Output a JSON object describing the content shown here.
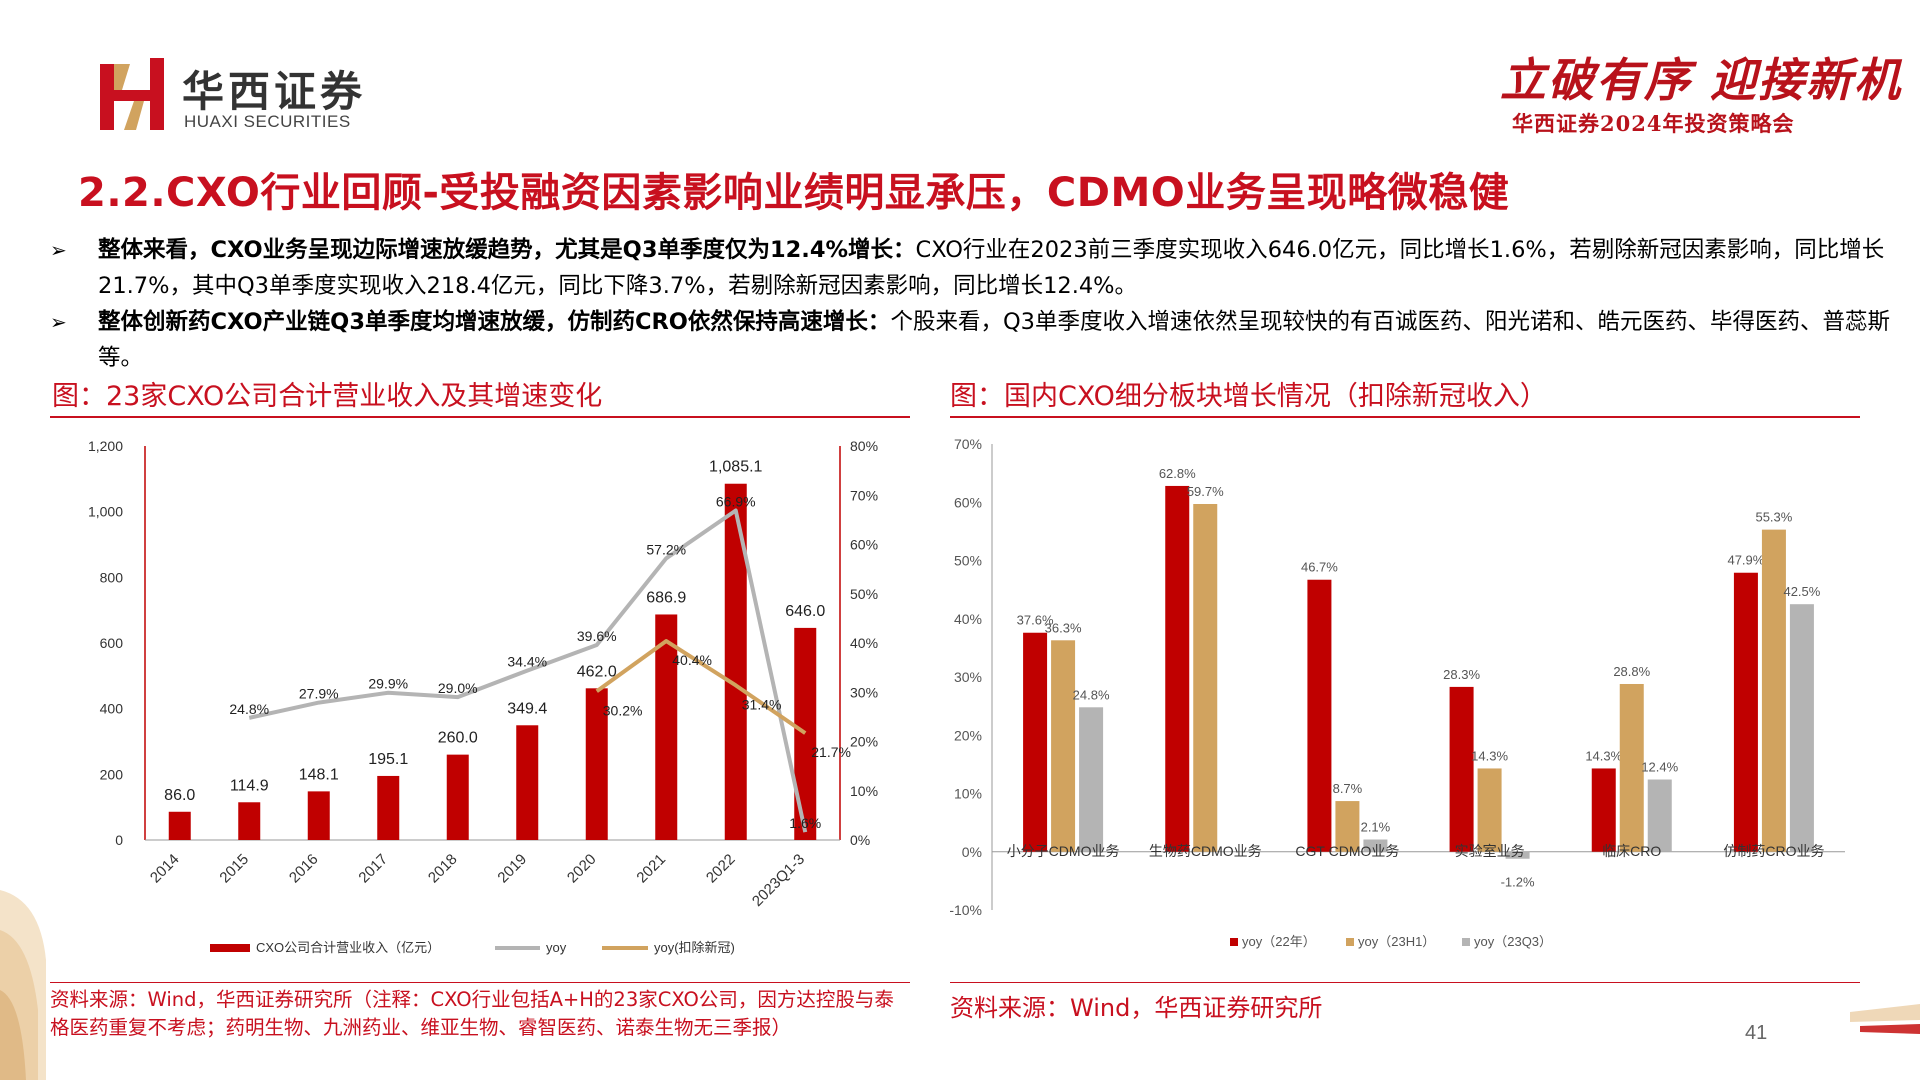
{
  "header": {
    "brand_cn": "华西证券",
    "brand_en": "HUAXI SECURITIES",
    "slogan": "立破有序 迎接新机",
    "conference": "华西证券2024年投资策略会"
  },
  "page_title": "2.2.CXO行业回顾-受投融资因素影响业绩明显承压，CDMO业务呈现略微稳健",
  "bullets": [
    {
      "marker": "➢",
      "bold": "整体来看，CXO业务呈现边际增速放缓趋势，尤其是Q3单季度仅为12.4%增长：",
      "text": "CXO行业在2023前三季度实现收入646.0亿元，同比增长1.6%，若剔除新冠因素影响，同比增长21.7%，其中Q3单季度实现收入218.4亿元，同比下降3.7%，若剔除新冠因素影响，同比增长12.4%。"
    },
    {
      "marker": "➢",
      "bold": "整体创新药CXO产业链Q3单季度均增速放缓，仿制药CRO依然保持高速增长：",
      "text": "个股来看，Q3单季度收入增速依然呈现较快的有百诚医药、阳光诺和、皓元医药、毕得医药、普蕊斯等。"
    }
  ],
  "figure_left": {
    "title": "图：23家CXO公司合计营业收入及其增速变化",
    "source": "资料来源：Wind，华西证券研究所（注释：CXO行业包括A+H的23家CXO公司，因方达控股与泰格医药重复不考虑；药明生物、九洲药业、维亚生物、睿智医药、诺泰生物无三季报）"
  },
  "figure_right": {
    "title": "图：国内CXO细分板块增长情况（扣除新冠收入）",
    "source": "资料来源：Wind，华西证券研究所"
  },
  "page_number": "41",
  "colors": {
    "red": "#c00000",
    "gold": "#d1a35f",
    "gray": "#b4b4b4",
    "title_red": "#c8101f"
  },
  "chart_data": [
    {
      "type": "bar",
      "categories": [
        "2014",
        "2015",
        "2016",
        "2017",
        "2018",
        "2019",
        "2020",
        "2021",
        "2022",
        "2023Q1-3"
      ],
      "series": [
        {
          "name": "CXO公司合计营业收入（亿元）",
          "type": "bar",
          "axis": "left",
          "color": "#c00000",
          "values": [
            86.0,
            114.9,
            148.1,
            195.1,
            260.0,
            349.4,
            462.0,
            686.9,
            1085.1,
            646.0
          ],
          "labels": [
            "86.0",
            "114.9",
            "148.1",
            "195.1",
            "260.0",
            "349.4",
            "462.0",
            "686.9",
            "1,085.1",
            "646.0"
          ]
        },
        {
          "name": "yoy",
          "type": "line",
          "axis": "right",
          "color": "#b4b4b4",
          "values": [
            null,
            24.8,
            27.9,
            29.9,
            29.0,
            34.4,
            39.6,
            57.2,
            66.9,
            1.6
          ],
          "labels": [
            "",
            "24.8%",
            "27.9%",
            "29.9%",
            "29.0%",
            "34.4%",
            "39.6%",
            "57.2%",
            "66.9%",
            "1.6%"
          ]
        },
        {
          "name": "yoy(扣除新冠)",
          "type": "line",
          "axis": "right",
          "color": "#d1a35f",
          "values": [
            null,
            null,
            null,
            null,
            null,
            null,
            30.2,
            40.4,
            31.4,
            21.7
          ],
          "labels": [
            "",
            "",
            "",
            "",
            "",
            "",
            "30.2%",
            "40.4%",
            "31.4%",
            "21.7%"
          ]
        }
      ],
      "y_left": {
        "range": [
          0,
          1200
        ],
        "ticks": [
          "0",
          "200",
          "400",
          "600",
          "800",
          "1,000",
          "1,200"
        ]
      },
      "y_right": {
        "range": [
          0,
          80
        ],
        "ticks": [
          "0%",
          "10%",
          "20%",
          "30%",
          "40%",
          "50%",
          "60%",
          "70%",
          "80%"
        ]
      },
      "legend_position": "bottom"
    },
    {
      "type": "bar",
      "categories": [
        "小分子CDMO业务",
        "生物药CDMO业务",
        "CGT CDMO业务",
        "实验室业务",
        "临床CRO",
        "仿制药CRO业务"
      ],
      "series": [
        {
          "name": "yoy（22年）",
          "color": "#c00000",
          "values": [
            37.6,
            62.8,
            46.7,
            28.3,
            14.3,
            47.9
          ],
          "labels": [
            "37.6%",
            "62.8%",
            "46.7%",
            "28.3%",
            "14.3%",
            "47.9%"
          ]
        },
        {
          "name": "yoy（23H1）",
          "color": "#d1a35f",
          "values": [
            36.3,
            59.7,
            8.7,
            14.3,
            28.8,
            55.3
          ],
          "labels": [
            "36.3%",
            "59.7%",
            "8.7%",
            "14.3%",
            "28.8%",
            "55.3%"
          ]
        },
        {
          "name": "yoy（23Q3）",
          "color": "#b4b4b4",
          "values": [
            24.8,
            null,
            2.1,
            -1.2,
            12.4,
            42.5
          ],
          "labels": [
            "24.8%",
            "",
            "2.1%",
            "-1.2%",
            "12.4%",
            "42.5%"
          ]
        }
      ],
      "y_axis": {
        "range": [
          -10,
          70
        ],
        "ticks": [
          "-10%",
          "0%",
          "10%",
          "20%",
          "30%",
          "40%",
          "50%",
          "60%",
          "70%"
        ]
      },
      "legend_position": "bottom"
    }
  ]
}
